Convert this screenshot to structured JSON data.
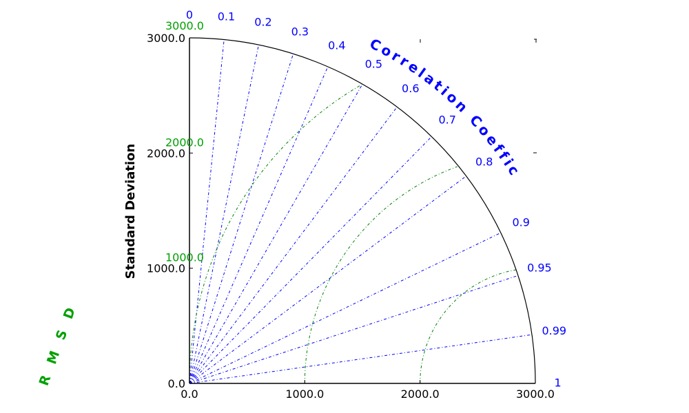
{
  "chart_data": {
    "type": "taylor",
    "ylabel": "Standard Deviation",
    "std_ticks": [
      {
        "value": 0,
        "label": "0.0"
      },
      {
        "value": 1000,
        "label": "1000.0"
      },
      {
        "value": 2000,
        "label": "2000.0"
      },
      {
        "value": 3000,
        "label": "3000.0"
      }
    ],
    "std_max": 3000,
    "correlation": {
      "title": "Correlation Coefficient",
      "ticks": [
        {
          "value": 0,
          "label": "0"
        },
        {
          "value": 0.1,
          "label": "0.1"
        },
        {
          "value": 0.2,
          "label": "0.2"
        },
        {
          "value": 0.3,
          "label": "0.3"
        },
        {
          "value": 0.4,
          "label": "0.4"
        },
        {
          "value": 0.5,
          "label": "0.5"
        },
        {
          "value": 0.6,
          "label": "0.6"
        },
        {
          "value": 0.7,
          "label": "0.7"
        },
        {
          "value": 0.8,
          "label": "0.8"
        },
        {
          "value": 0.9,
          "label": "0.9"
        },
        {
          "value": 0.95,
          "label": "0.95"
        },
        {
          "value": 0.99,
          "label": "0.99"
        },
        {
          "value": 1,
          "label": "1"
        }
      ]
    },
    "rmsd": {
      "title": "R M S D",
      "contours": [
        {
          "value": 1000,
          "label": "1000.0"
        },
        {
          "value": 2000,
          "label": "2000.0"
        },
        {
          "value": 3000,
          "label": "3000.0"
        }
      ]
    },
    "colors": {
      "axes": "#000000",
      "correlation": "#0000ff",
      "rmsd": "#008000",
      "rmsd_text": "#00a000"
    }
  }
}
